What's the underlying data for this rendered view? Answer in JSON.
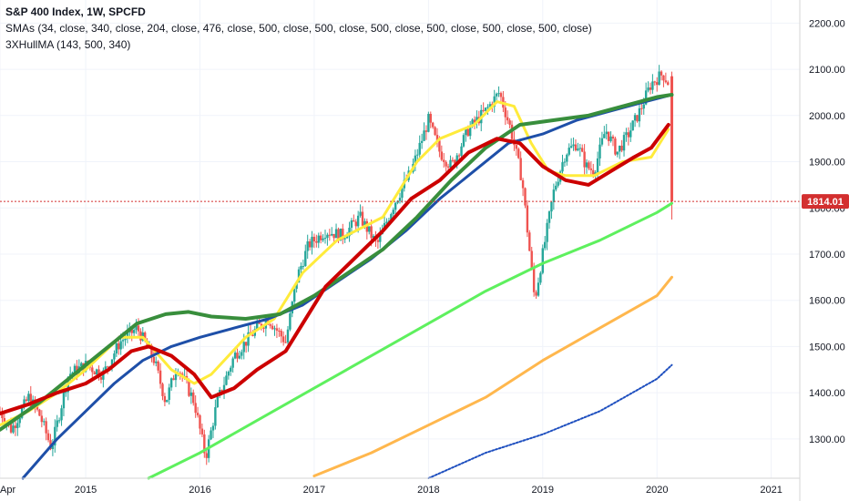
{
  "legend": {
    "title": "S&P 400 Index, 1W, SPCFD",
    "sma": "SMAs (34, close, 340, close, 204, close, 476, close, 500, close, 500, close, 500, close, 500, close, 500, close, 500, close)",
    "hull": "3XHullMA (143, 500, 340)"
  },
  "chart_data": {
    "type": "line",
    "title": "S&P 400 Index, 1W, SPCFD",
    "x_range": [
      2014.25,
      2021.25
    ],
    "y_range": [
      1215,
      2250
    ],
    "y_ticks": [
      1300,
      1400,
      1500,
      1600,
      1700,
      1800,
      1900,
      2000,
      2100,
      2200
    ],
    "y_tick_labels": [
      "1300.00",
      "1400.00",
      "1500.00",
      "1600.00",
      "1700.00",
      "1800.00",
      "1900.00",
      "2000.00",
      "2100.00",
      "2200.00"
    ],
    "x_ticks": [
      {
        "x": 2014.25,
        "label": "Apr"
      },
      {
        "x": 2015.0,
        "label": "2015"
      },
      {
        "x": 2016.0,
        "label": "2016"
      },
      {
        "x": 2017.0,
        "label": "2017"
      },
      {
        "x": 2018.0,
        "label": "2018"
      },
      {
        "x": 2019.0,
        "label": "2019"
      },
      {
        "x": 2020.0,
        "label": "2020"
      },
      {
        "x": 2021.0,
        "label": "2021"
      }
    ],
    "last_price": 1814.01,
    "last_price_label": "1814.01",
    "price_path": [
      [
        2014.25,
        1360
      ],
      [
        2014.35,
        1320
      ],
      [
        2014.5,
        1390
      ],
      [
        2014.6,
        1350
      ],
      [
        2014.7,
        1280
      ],
      [
        2014.85,
        1440
      ],
      [
        2015.0,
        1460
      ],
      [
        2015.15,
        1440
      ],
      [
        2015.3,
        1510
      ],
      [
        2015.45,
        1540
      ],
      [
        2015.6,
        1470
      ],
      [
        2015.7,
        1380
      ],
      [
        2015.8,
        1460
      ],
      [
        2015.95,
        1380
      ],
      [
        2016.05,
        1260
      ],
      [
        2016.15,
        1380
      ],
      [
        2016.3,
        1480
      ],
      [
        2016.5,
        1540
      ],
      [
        2016.6,
        1560
      ],
      [
        2016.75,
        1510
      ],
      [
        2016.85,
        1650
      ],
      [
        2016.95,
        1720
      ],
      [
        2017.1,
        1750
      ],
      [
        2017.25,
        1740
      ],
      [
        2017.4,
        1780
      ],
      [
        2017.55,
        1720
      ],
      [
        2017.7,
        1810
      ],
      [
        2017.85,
        1880
      ],
      [
        2018.0,
        1990
      ],
      [
        2018.1,
        1920
      ],
      [
        2018.2,
        1890
      ],
      [
        2018.35,
        1970
      ],
      [
        2018.5,
        2010
      ],
      [
        2018.62,
        2050
      ],
      [
        2018.72,
        1970
      ],
      [
        2018.82,
        1860
      ],
      [
        2018.93,
        1600
      ],
      [
        2019.0,
        1700
      ],
      [
        2019.1,
        1840
      ],
      [
        2019.2,
        1920
      ],
      [
        2019.3,
        1940
      ],
      [
        2019.38,
        1890
      ],
      [
        2019.45,
        1880
      ],
      [
        2019.55,
        1970
      ],
      [
        2019.65,
        1920
      ],
      [
        2019.75,
        1960
      ],
      [
        2019.85,
        2010
      ],
      [
        2019.95,
        2070
      ],
      [
        2020.05,
        2090
      ],
      [
        2020.1,
        2070
      ],
      [
        2020.13,
        1814
      ]
    ],
    "series": [
      {
        "name": "SMA 34",
        "color": "#ffeb3b",
        "width": 3,
        "style": "solid",
        "points": [
          [
            2014.25,
            1330
          ],
          [
            2014.5,
            1360
          ],
          [
            2014.75,
            1400
          ],
          [
            2015.0,
            1450
          ],
          [
            2015.3,
            1520
          ],
          [
            2015.5,
            1520
          ],
          [
            2015.75,
            1450
          ],
          [
            2015.95,
            1420
          ],
          [
            2016.1,
            1440
          ],
          [
            2016.4,
            1520
          ],
          [
            2016.65,
            1560
          ],
          [
            2016.9,
            1660
          ],
          [
            2017.2,
            1730
          ],
          [
            2017.6,
            1780
          ],
          [
            2017.9,
            1900
          ],
          [
            2018.1,
            1950
          ],
          [
            2018.4,
            1980
          ],
          [
            2018.6,
            2030
          ],
          [
            2018.75,
            2020
          ],
          [
            2018.9,
            1940
          ],
          [
            2019.05,
            1880
          ],
          [
            2019.2,
            1870
          ],
          [
            2019.45,
            1870
          ],
          [
            2019.7,
            1900
          ],
          [
            2019.95,
            1910
          ],
          [
            2020.1,
            1970
          ]
        ]
      },
      {
        "name": "SMA 340",
        "color": "#1e4fa8",
        "width": 3,
        "style": "solid",
        "points": [
          [
            2014.45,
            1215
          ],
          [
            2014.75,
            1300
          ],
          [
            2015.0,
            1360
          ],
          [
            2015.25,
            1420
          ],
          [
            2015.5,
            1470
          ],
          [
            2015.75,
            1500
          ],
          [
            2016.0,
            1520
          ],
          [
            2016.3,
            1540
          ],
          [
            2016.6,
            1560
          ],
          [
            2016.9,
            1590
          ],
          [
            2017.2,
            1640
          ],
          [
            2017.5,
            1690
          ],
          [
            2017.8,
            1750
          ],
          [
            2018.1,
            1820
          ],
          [
            2018.4,
            1880
          ],
          [
            2018.7,
            1940
          ],
          [
            2019.0,
            1960
          ],
          [
            2019.3,
            1990
          ],
          [
            2019.6,
            2010
          ],
          [
            2019.9,
            2030
          ],
          [
            2020.13,
            2045
          ]
        ]
      },
      {
        "name": "SMA 204",
        "color": "#388e3c",
        "width": 4,
        "style": "solid",
        "points": [
          [
            2014.25,
            1320
          ],
          [
            2014.6,
            1380
          ],
          [
            2014.9,
            1440
          ],
          [
            2015.2,
            1500
          ],
          [
            2015.45,
            1550
          ],
          [
            2015.7,
            1570
          ],
          [
            2015.9,
            1575
          ],
          [
            2016.1,
            1565
          ],
          [
            2016.4,
            1560
          ],
          [
            2016.7,
            1570
          ],
          [
            2017.0,
            1610
          ],
          [
            2017.3,
            1660
          ],
          [
            2017.6,
            1710
          ],
          [
            2017.9,
            1780
          ],
          [
            2018.2,
            1860
          ],
          [
            2018.5,
            1930
          ],
          [
            2018.8,
            1980
          ],
          [
            2019.1,
            1990
          ],
          [
            2019.4,
            2000
          ],
          [
            2019.7,
            2020
          ],
          [
            2020.0,
            2040
          ],
          [
            2020.13,
            2045
          ]
        ]
      },
      {
        "name": "SMA 476",
        "color": "#cc0000",
        "width": 4,
        "style": "solid",
        "points": [
          [
            2014.25,
            1355
          ],
          [
            2014.5,
            1375
          ],
          [
            2014.75,
            1400
          ],
          [
            2015.0,
            1420
          ],
          [
            2015.2,
            1450
          ],
          [
            2015.4,
            1490
          ],
          [
            2015.55,
            1500
          ],
          [
            2015.75,
            1480
          ],
          [
            2015.95,
            1440
          ],
          [
            2016.1,
            1390
          ],
          [
            2016.3,
            1410
          ],
          [
            2016.5,
            1450
          ],
          [
            2016.75,
            1490
          ],
          [
            2016.9,
            1550
          ],
          [
            2017.1,
            1630
          ],
          [
            2017.35,
            1690
          ],
          [
            2017.6,
            1750
          ],
          [
            2017.85,
            1820
          ],
          [
            2018.1,
            1860
          ],
          [
            2018.35,
            1920
          ],
          [
            2018.6,
            1950
          ],
          [
            2018.8,
            1940
          ],
          [
            2019.0,
            1890
          ],
          [
            2019.2,
            1860
          ],
          [
            2019.4,
            1850
          ],
          [
            2019.6,
            1880
          ],
          [
            2019.8,
            1910
          ],
          [
            2019.95,
            1930
          ],
          [
            2020.1,
            1980
          ]
        ]
      },
      {
        "name": "SMA 500",
        "color": "#5ef05e",
        "width": 3,
        "style": "solid",
        "points": [
          [
            2015.55,
            1215
          ],
          [
            2016.0,
            1270
          ],
          [
            2016.5,
            1340
          ],
          [
            2017.0,
            1410
          ],
          [
            2017.5,
            1480
          ],
          [
            2018.0,
            1550
          ],
          [
            2018.5,
            1620
          ],
          [
            2019.0,
            1680
          ],
          [
            2019.5,
            1730
          ],
          [
            2020.0,
            1790
          ],
          [
            2020.13,
            1810
          ]
        ]
      },
      {
        "name": "SMA 500 (b)",
        "color": "#ffb74d",
        "width": 3,
        "style": "solid",
        "points": [
          [
            2017.0,
            1220
          ],
          [
            2017.5,
            1270
          ],
          [
            2018.0,
            1330
          ],
          [
            2018.5,
            1390
          ],
          [
            2019.0,
            1470
          ],
          [
            2019.5,
            1540
          ],
          [
            2020.0,
            1610
          ],
          [
            2020.13,
            1650
          ]
        ]
      },
      {
        "name": "SMA 500 (c)",
        "color": "#1e4fbf",
        "width": 2,
        "style": "dotted",
        "points": [
          [
            2018.0,
            1215
          ],
          [
            2018.5,
            1270
          ],
          [
            2019.0,
            1310
          ],
          [
            2019.5,
            1360
          ],
          [
            2020.0,
            1430
          ],
          [
            2020.13,
            1460
          ]
        ]
      }
    ]
  }
}
